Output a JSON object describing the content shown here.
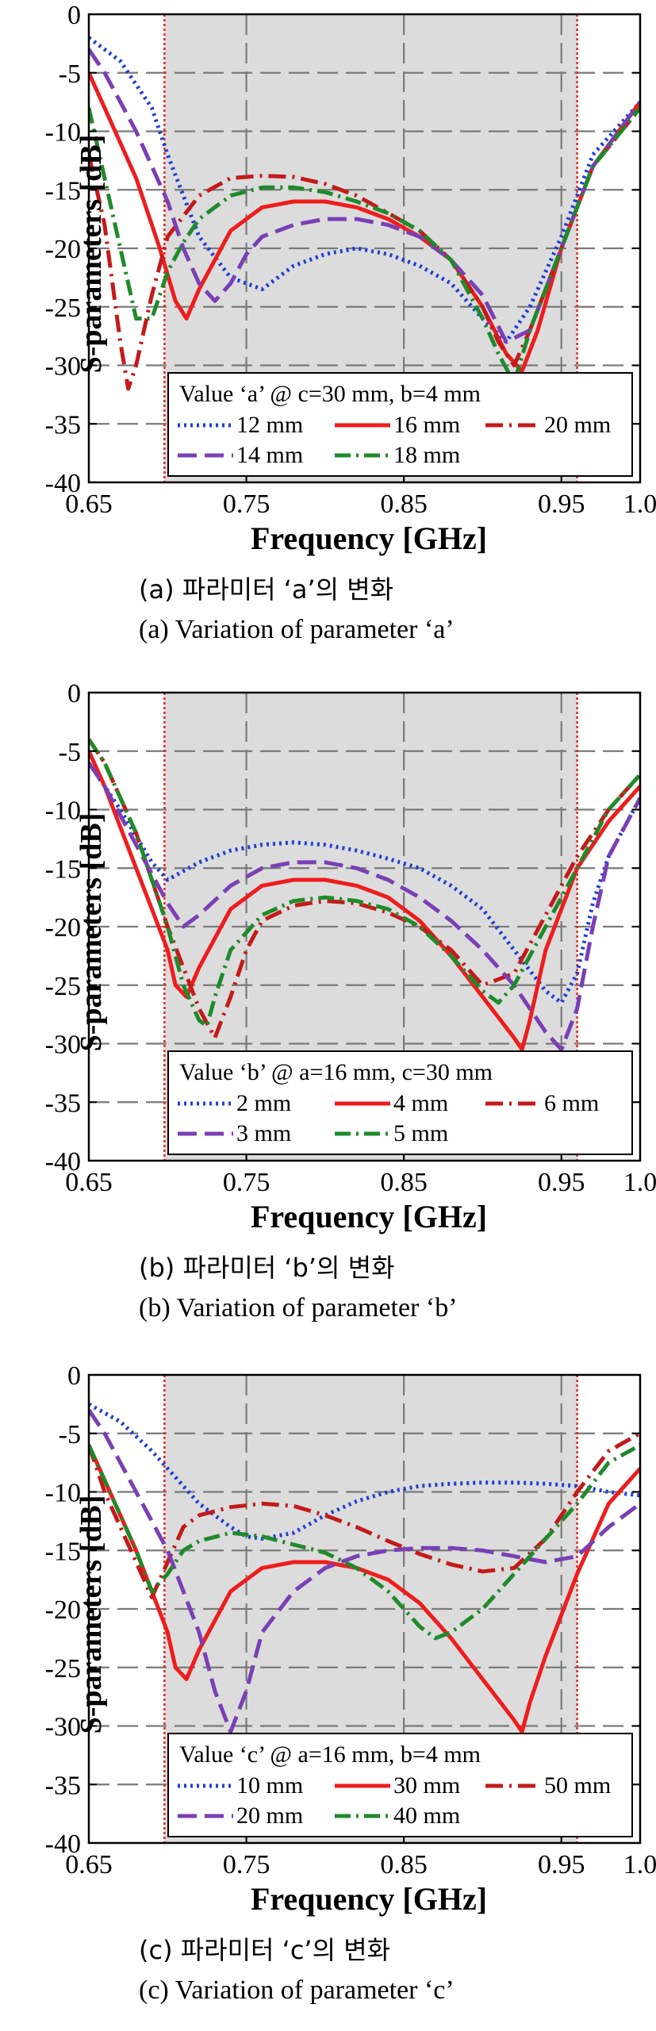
{
  "colors": {
    "shade": "#dcdcdc",
    "grid": "#7a7a7a",
    "boundary": "#e8261c",
    "blue": "#1f3fd6",
    "red": "#ee1d1d",
    "darkred": "#c41a1a",
    "purple": "#7a3fb5",
    "green": "#1f8a2a"
  },
  "panels": [
    {
      "ylabel": "S-parameters [dB]",
      "xlabel": "Frequency [GHz]",
      "caption_ko": "(a)  파라미터 ‘a’의 변화",
      "caption_en": "(a)  Variation of parameter ‘a’",
      "legend_title": "Value ‘a’ @ c=30 mm, b=4 mm",
      "chart_data": {
        "type": "line",
        "xlim": [
          0.65,
          1.0
        ],
        "ylim": [
          -40,
          0
        ],
        "xticks": [
          "0.65",
          "0.75",
          "0.85",
          "0.95",
          "1.0"
        ],
        "xtick_values": [
          0.65,
          0.75,
          0.85,
          0.95,
          1.0
        ],
        "yticks": [
          "0",
          "-5",
          "-10",
          "-15",
          "-20",
          "-25",
          "-30",
          "-35",
          "-40"
        ],
        "ytick_values": [
          0,
          -5,
          -10,
          -15,
          -20,
          -25,
          -30,
          -35,
          -40
        ],
        "shaded_band": [
          0.698,
          0.96
        ],
        "grid": true,
        "series": [
          {
            "name": "12 mm",
            "color": "blue",
            "dash": "3,5",
            "x": [
              0.65,
              0.67,
              0.69,
              0.7,
              0.72,
              0.74,
              0.76,
              0.78,
              0.8,
              0.82,
              0.84,
              0.86,
              0.88,
              0.9,
              0.915,
              0.93,
              0.95,
              0.97,
              1.0
            ],
            "y": [
              -2,
              -4,
              -8,
              -12,
              -19,
              -22.5,
              -23.5,
              -21.5,
              -20.5,
              -20,
              -20.5,
              -21.5,
              -23,
              -26,
              -28,
              -25,
              -19,
              -12,
              -7.5
            ]
          },
          {
            "name": "16 mm",
            "color": "red",
            "dash": "",
            "x": [
              0.65,
              0.66,
              0.68,
              0.695,
              0.705,
              0.712,
              0.72,
              0.74,
              0.76,
              0.78,
              0.8,
              0.82,
              0.84,
              0.86,
              0.88,
              0.9,
              0.915,
              0.925,
              0.935,
              0.95,
              0.97,
              1.0
            ],
            "y": [
              -5,
              -8,
              -14,
              -20,
              -24.5,
              -26,
              -23.5,
              -18.5,
              -16.5,
              -16,
              -16,
              -16.5,
              -17.5,
              -19,
              -21,
              -25,
              -29,
              -30.5,
              -27,
              -20,
              -13,
              -7.5
            ]
          },
          {
            "name": "20 mm",
            "color": "darkred",
            "dash": "22,8,3,8",
            "x": [
              0.65,
              0.66,
              0.67,
              0.675,
              0.68,
              0.69,
              0.7,
              0.72,
              0.74,
              0.76,
              0.78,
              0.8,
              0.82,
              0.84,
              0.86,
              0.88,
              0.9,
              0.91,
              0.92,
              0.93,
              0.95,
              0.97,
              1.0
            ],
            "y": [
              -12,
              -18,
              -28,
              -32,
              -30,
              -24,
              -19,
              -15.5,
              -14,
              -13.8,
              -13.9,
              -14.5,
              -15.5,
              -17,
              -18.5,
              -21,
              -25,
              -28,
              -30,
              -27,
              -20,
              -13,
              -8
            ]
          },
          {
            "name": "14 mm",
            "color": "purple",
            "dash": "24,10",
            "x": [
              0.65,
              0.66,
              0.68,
              0.7,
              0.71,
              0.72,
              0.73,
              0.74,
              0.75,
              0.76,
              0.78,
              0.8,
              0.82,
              0.84,
              0.86,
              0.88,
              0.9,
              0.915,
              0.93,
              0.95,
              0.97,
              1.0
            ],
            "y": [
              -3,
              -5,
              -10,
              -16,
              -20,
              -23,
              -24.5,
              -23,
              -20.5,
              -19,
              -18,
              -17.5,
              -17.5,
              -18,
              -19,
              -21,
              -24,
              -28,
              -27,
              -20,
              -13,
              -7.5
            ]
          },
          {
            "name": "18 mm",
            "color": "green",
            "dash": "20,7,3,7",
            "x": [
              0.65,
              0.66,
              0.67,
              0.68,
              0.69,
              0.7,
              0.71,
              0.72,
              0.74,
              0.76,
              0.78,
              0.8,
              0.82,
              0.84,
              0.86,
              0.88,
              0.9,
              0.91,
              0.92,
              0.93,
              0.95,
              0.97,
              1.0
            ],
            "y": [
              -8,
              -14,
              -20,
              -26,
              -26,
              -22,
              -19.5,
              -17.5,
              -15.5,
              -14.8,
              -14.8,
              -15.2,
              -16,
              -17,
              -18.5,
              -21,
              -26,
              -29,
              -31.5,
              -27,
              -20,
              -13,
              -8
            ]
          }
        ]
      }
    },
    {
      "ylabel": "S-parameters [dB]",
      "xlabel": "Frequency [GHz]",
      "caption_ko": "(b)  파라미터 ‘b’의 변화",
      "caption_en": "(b)  Variation of parameter ‘b’",
      "legend_title": "Value ‘b’ @ a=16 mm, c=30 mm",
      "chart_data": {
        "type": "line",
        "xlim": [
          0.65,
          1.0
        ],
        "ylim": [
          -40,
          0
        ],
        "xticks": [
          "0.65",
          "0.75",
          "0.85",
          "0.95",
          "1.0"
        ],
        "xtick_values": [
          0.65,
          0.75,
          0.85,
          0.95,
          1.0
        ],
        "yticks": [
          "0",
          "-5",
          "-10",
          "-15",
          "-20",
          "-25",
          "-30",
          "-35",
          "-40"
        ],
        "ytick_values": [
          0,
          -5,
          -10,
          -15,
          -20,
          -25,
          -30,
          -35,
          -40
        ],
        "shaded_band": [
          0.698,
          0.96
        ],
        "grid": true,
        "series": [
          {
            "name": "2 mm",
            "color": "blue",
            "dash": "3,5",
            "x": [
              0.65,
              0.67,
              0.69,
              0.7,
              0.72,
              0.74,
              0.76,
              0.78,
              0.8,
              0.82,
              0.84,
              0.86,
              0.88,
              0.9,
              0.92,
              0.94,
              0.95,
              0.96,
              0.97,
              0.98,
              1.0
            ],
            "y": [
              -6,
              -10,
              -14.5,
              -16,
              -14.5,
              -13.5,
              -13,
              -12.8,
              -13,
              -13.5,
              -14.2,
              -15,
              -16.5,
              -18.5,
              -22,
              -25.5,
              -26.5,
              -24,
              -18,
              -14,
              -9
            ]
          },
          {
            "name": "4 mm",
            "color": "red",
            "dash": "",
            "x": [
              0.65,
              0.66,
              0.68,
              0.7,
              0.705,
              0.712,
              0.72,
              0.74,
              0.76,
              0.78,
              0.8,
              0.82,
              0.84,
              0.86,
              0.88,
              0.9,
              0.92,
              0.925,
              0.93,
              0.94,
              0.96,
              0.98,
              1.0
            ],
            "y": [
              -5,
              -8,
              -15,
              -22,
              -25,
              -26,
              -23.5,
              -18.5,
              -16.5,
              -16,
              -16,
              -16.5,
              -17.5,
              -19.5,
              -22.5,
              -26,
              -29.5,
              -30.5,
              -28,
              -22,
              -15,
              -11,
              -8
            ]
          },
          {
            "name": "6 mm",
            "color": "darkred",
            "dash": "22,8,3,8",
            "x": [
              0.65,
              0.66,
              0.68,
              0.7,
              0.72,
              0.73,
              0.74,
              0.75,
              0.76,
              0.78,
              0.8,
              0.82,
              0.84,
              0.86,
              0.88,
              0.9,
              0.92,
              0.94,
              0.96,
              0.98,
              1.0
            ],
            "y": [
              -4,
              -6,
              -12,
              -20,
              -27,
              -29.5,
              -26,
              -22,
              -19.5,
              -18.2,
              -17.8,
              -18,
              -18.8,
              -20,
              -22,
              -25,
              -24,
              -19,
              -14,
              -10,
              -7
            ]
          },
          {
            "name": "3 mm",
            "color": "purple",
            "dash": "24,10",
            "x": [
              0.65,
              0.66,
              0.68,
              0.7,
              0.71,
              0.72,
              0.74,
              0.76,
              0.78,
              0.8,
              0.82,
              0.84,
              0.86,
              0.88,
              0.9,
              0.92,
              0.94,
              0.95,
              0.96,
              0.97,
              0.98,
              1.0
            ],
            "y": [
              -6,
              -8,
              -13,
              -18,
              -20,
              -19,
              -16.5,
              -15,
              -14.5,
              -14.5,
              -15,
              -16,
              -17.5,
              -19.5,
              -22,
              -25,
              -29,
              -30.5,
              -27,
              -20,
              -14,
              -9
            ]
          },
          {
            "name": "5 mm",
            "color": "green",
            "dash": "20,7,3,7",
            "x": [
              0.65,
              0.66,
              0.68,
              0.7,
              0.71,
              0.72,
              0.725,
              0.73,
              0.74,
              0.76,
              0.78,
              0.8,
              0.82,
              0.84,
              0.86,
              0.88,
              0.9,
              0.91,
              0.92,
              0.94,
              0.96,
              0.98,
              1.0
            ],
            "y": [
              -4,
              -6,
              -12,
              -20,
              -25,
              -28,
              -28.5,
              -26,
              -22,
              -19,
              -17.8,
              -17.5,
              -17.8,
              -18.5,
              -20,
              -22.5,
              -25.5,
              -26.5,
              -25,
              -20,
              -15,
              -10,
              -7
            ]
          }
        ]
      }
    },
    {
      "ylabel": "S-parameters [dB]",
      "xlabel": "Frequency [GHz]",
      "caption_ko": "(c)  파라미터 ‘c’의 변화",
      "caption_en": "(c)  Variation of parameter ‘c’",
      "legend_title": "Value ‘c’ @ a=16 mm, b=4 mm",
      "chart_data": {
        "type": "line",
        "xlim": [
          0.65,
          1.0
        ],
        "ylim": [
          -40,
          0
        ],
        "xticks": [
          "0.65",
          "0.75",
          "0.85",
          "0.95",
          "1.0"
        ],
        "xtick_values": [
          0.65,
          0.75,
          0.85,
          0.95,
          1.0
        ],
        "yticks": [
          "0",
          "-5",
          "-10",
          "-15",
          "-20",
          "-25",
          "-30",
          "-35",
          "-40"
        ],
        "ytick_values": [
          0,
          -5,
          -10,
          -15,
          -20,
          -25,
          -30,
          -35,
          -40
        ],
        "shaded_band": [
          0.698,
          0.96
        ],
        "grid": true,
        "series": [
          {
            "name": "10 mm",
            "color": "blue",
            "dash": "3,5",
            "x": [
              0.65,
              0.67,
              0.69,
              0.7,
              0.72,
              0.74,
              0.75,
              0.76,
              0.78,
              0.8,
              0.82,
              0.84,
              0.86,
              0.88,
              0.9,
              0.92,
              0.94,
              0.96,
              0.98,
              1.0
            ],
            "y": [
              -2.5,
              -4,
              -6.5,
              -8,
              -11,
              -13,
              -13.8,
              -14,
              -13.5,
              -12,
              -10.8,
              -10,
              -9.5,
              -9.3,
              -9.2,
              -9.2,
              -9.3,
              -9.5,
              -10,
              -10.3
            ]
          },
          {
            "name": "30 mm",
            "color": "red",
            "dash": "",
            "x": [
              0.65,
              0.66,
              0.68,
              0.7,
              0.705,
              0.712,
              0.72,
              0.74,
              0.76,
              0.78,
              0.8,
              0.82,
              0.84,
              0.86,
              0.88,
              0.9,
              0.92,
              0.925,
              0.93,
              0.94,
              0.96,
              0.98,
              1.0
            ],
            "y": [
              -6,
              -9,
              -15,
              -22,
              -25,
              -26,
              -23.5,
              -18.5,
              -16.5,
              -16,
              -16,
              -16.5,
              -17.5,
              -19.5,
              -22.5,
              -26,
              -29.5,
              -30.5,
              -28,
              -24,
              -17,
              -11,
              -8
            ]
          },
          {
            "name": "50 mm",
            "color": "darkred",
            "dash": "22,8,3,8",
            "x": [
              0.65,
              0.66,
              0.68,
              0.69,
              0.7,
              0.71,
              0.72,
              0.74,
              0.76,
              0.78,
              0.8,
              0.82,
              0.84,
              0.86,
              0.88,
              0.9,
              0.92,
              0.94,
              0.96,
              0.98,
              1.0
            ],
            "y": [
              -6,
              -10,
              -16,
              -19,
              -16,
              -13,
              -12,
              -11.3,
              -11,
              -11.2,
              -12,
              -13,
              -14.2,
              -15.3,
              -16.2,
              -16.8,
              -16.5,
              -14,
              -10,
              -6.5,
              -5
            ]
          },
          {
            "name": "20 mm",
            "color": "purple",
            "dash": "24,10",
            "x": [
              0.65,
              0.66,
              0.68,
              0.7,
              0.72,
              0.73,
              0.74,
              0.75,
              0.76,
              0.78,
              0.8,
              0.82,
              0.84,
              0.86,
              0.88,
              0.9,
              0.92,
              0.94,
              0.96,
              0.98,
              1.0
            ],
            "y": [
              -3,
              -5,
              -10,
              -15,
              -22,
              -27,
              -30.5,
              -27,
              -22,
              -18.5,
              -16.5,
              -15.5,
              -15,
              -14.8,
              -14.8,
              -15,
              -15.5,
              -16,
              -15.5,
              -13,
              -11
            ]
          },
          {
            "name": "40 mm",
            "color": "green",
            "dash": "20,7,3,7",
            "x": [
              0.65,
              0.66,
              0.68,
              0.69,
              0.7,
              0.71,
              0.72,
              0.74,
              0.76,
              0.78,
              0.8,
              0.82,
              0.84,
              0.86,
              0.87,
              0.88,
              0.9,
              0.92,
              0.94,
              0.96,
              0.98,
              1.0
            ],
            "y": [
              -6,
              -9,
              -15,
              -18.5,
              -17,
              -15,
              -14.2,
              -13.5,
              -13.8,
              -14.5,
              -15.2,
              -16.5,
              -18.5,
              -21.5,
              -22.5,
              -22,
              -20,
              -17,
              -14,
              -11,
              -7.5,
              -6
            ]
          }
        ]
      }
    }
  ]
}
